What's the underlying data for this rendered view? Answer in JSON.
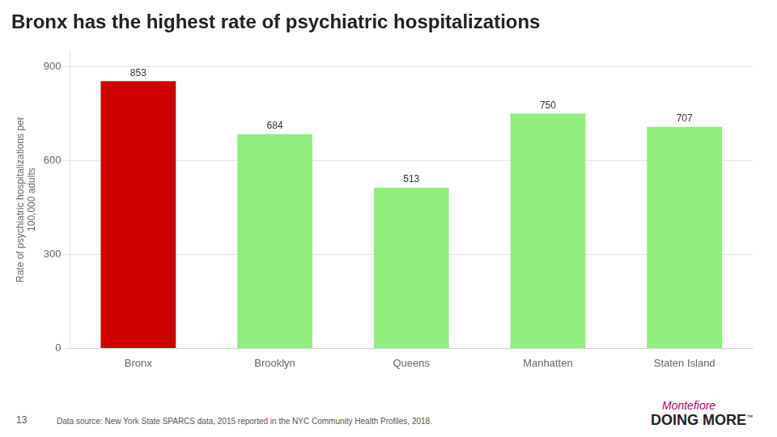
{
  "chart_data": {
    "type": "bar",
    "title": "Bronx has the highest rate of psychiatric hospitalizations",
    "categories": [
      "Bronx",
      "Brooklyn",
      "Queens",
      "Manhatten",
      "Staten Island"
    ],
    "values": [
      853,
      684,
      513,
      750,
      707
    ],
    "colors": [
      "#cc0000",
      "#90ee80",
      "#90ee80",
      "#90ee80",
      "#90ee80"
    ],
    "ylabel": [
      "Rate of psychiatric hospitalizations per",
      "100,000 adults"
    ],
    "ylim": [
      0,
      950
    ],
    "yticks": [
      0,
      300,
      600,
      900
    ],
    "grid": true,
    "data_labels": true,
    "annotations": [
      {
        "text": "13"
      },
      {
        "text": "Data source: New York State SPARCS data, 2015 reported in the NYC Community Health Profiles, 2018."
      },
      {
        "text": "Montefiore",
        "color": "#b5006e"
      },
      {
        "text": "DOING MORE",
        "color": "#222222"
      },
      {
        "text": "™",
        "color": "#222222"
      }
    ]
  }
}
